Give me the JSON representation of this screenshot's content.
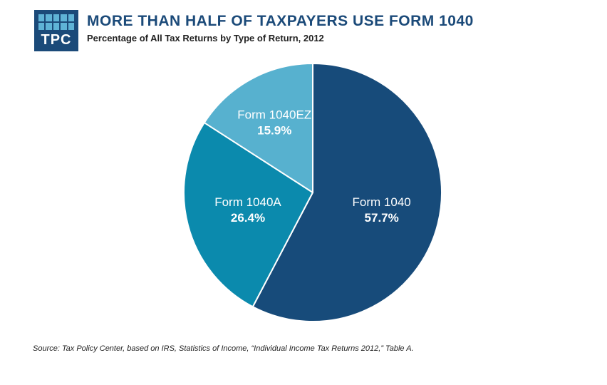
{
  "header": {
    "logo_text": "TPC",
    "title": "MORE THAN HALF OF TAXPAYERS USE FORM 1040",
    "subtitle": "Percentage of All Tax Returns by Type of Return, 2012"
  },
  "colors": {
    "brand": "#1b4a79",
    "form1040": "#174b7a",
    "form1040a": "#0b8aad",
    "form1040ez": "#57b1cf",
    "logo_accent": "#5fb3d6"
  },
  "chart_data": {
    "type": "pie",
    "title": "MORE THAN HALF OF TAXPAYERS USE FORM 1040",
    "subtitle": "Percentage of All Tax Returns by Type of Return, 2012",
    "start_angle": "12 o'clock",
    "direction": "clockwise",
    "slices": [
      {
        "label": "Form 1040",
        "value": 57.7,
        "value_label": "57.7%",
        "color": "#174b7a"
      },
      {
        "label": "Form 1040A",
        "value": 26.4,
        "value_label": "26.4%",
        "color": "#0b8aad"
      },
      {
        "label": "Form 1040EZ",
        "value": 15.9,
        "value_label": "15.9%",
        "color": "#57b1cf"
      }
    ]
  },
  "footer": {
    "source": "Source: Tax Policy Center, based on IRS, Statistics of Income, “Individual Income Tax Returns 2012,” Table A."
  }
}
